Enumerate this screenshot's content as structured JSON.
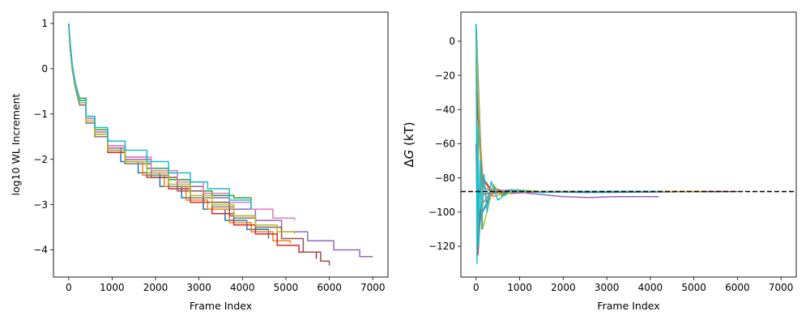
{
  "chart_data": [
    {
      "type": "line",
      "title": "",
      "xlabel": "Frame Index",
      "ylabel": "log10 WL Increment",
      "xlim": [
        -350,
        7350
      ],
      "ylim": [
        -4.6,
        1.25
      ],
      "xticks": [
        0,
        1000,
        2000,
        3000,
        4000,
        5000,
        6000,
        7000
      ],
      "yticks": [
        1,
        0,
        -1,
        -2,
        -3,
        -4
      ],
      "xtick_labels": [
        "0",
        "1000",
        "2000",
        "3000",
        "4000",
        "5000",
        "6000",
        "7000"
      ],
      "ytick_labels": [
        "1",
        "0",
        "−1",
        "−2",
        "−3",
        "−4"
      ],
      "grid": false,
      "series": [
        {
          "color": "#1f77b4",
          "x": [
            0,
            30,
            80,
            150,
            250,
            400,
            600,
            900,
            1200,
            1600,
            2100,
            2600,
            3100,
            3600,
            4100,
            4600
          ],
          "values": [
            1,
            0.6,
            0.1,
            -0.3,
            -0.7,
            -1.1,
            -1.4,
            -1.75,
            -2.05,
            -2.3,
            -2.6,
            -2.85,
            -3.1,
            -3.35,
            -3.55,
            -3.75
          ]
        },
        {
          "color": "#ff7f0e",
          "x": [
            0,
            30,
            80,
            150,
            250,
            400,
            600,
            900,
            1300,
            1700,
            2200,
            2700,
            3200,
            3700,
            4200,
            4700,
            5100
          ],
          "values": [
            1,
            0.55,
            0.05,
            -0.35,
            -0.75,
            -1.15,
            -1.45,
            -1.8,
            -2.05,
            -2.35,
            -2.6,
            -2.9,
            -3.1,
            -3.4,
            -3.6,
            -3.8,
            -3.85
          ]
        },
        {
          "color": "#2ca02c",
          "x": [
            0,
            30,
            80,
            150,
            250,
            400,
            600,
            900,
            1300,
            1800,
            2300,
            2800,
            3300,
            3800,
            4200
          ],
          "values": [
            1,
            0.6,
            0.1,
            -0.3,
            -0.65,
            -1.05,
            -1.35,
            -1.7,
            -1.95,
            -2.2,
            -2.45,
            -2.7,
            -2.8,
            -2.85,
            -2.9
          ]
        },
        {
          "color": "#d62728",
          "x": [
            0,
            30,
            80,
            150,
            250,
            400,
            600,
            900,
            1300,
            1800,
            2300,
            2800,
            3300,
            3800,
            4300,
            4800,
            5300,
            5700
          ],
          "values": [
            1,
            0.5,
            0,
            -0.4,
            -0.8,
            -1.2,
            -1.5,
            -1.85,
            -2.1,
            -2.4,
            -2.65,
            -2.95,
            -3.2,
            -3.45,
            -3.65,
            -3.9,
            -4.05,
            -4.2
          ]
        },
        {
          "color": "#9467bd",
          "x": [
            0,
            30,
            80,
            150,
            250,
            400,
            600,
            900,
            1300,
            1900,
            2500,
            3100,
            3700,
            4300,
            4900,
            5500,
            6100,
            6700,
            7000
          ],
          "values": [
            1,
            0.6,
            0.1,
            -0.3,
            -0.7,
            -1.1,
            -1.4,
            -1.75,
            -2.0,
            -2.3,
            -2.6,
            -2.85,
            -3.1,
            -3.35,
            -3.6,
            -3.8,
            -4.0,
            -4.15,
            -4.15
          ]
        },
        {
          "color": "#8c564b",
          "x": [
            0,
            30,
            80,
            150,
            250,
            400,
            600,
            900,
            1300,
            1900,
            2500,
            3100,
            3700,
            4300,
            4900,
            5400,
            5800,
            6000
          ],
          "values": [
            1,
            0.55,
            0.05,
            -0.35,
            -0.75,
            -1.15,
            -1.45,
            -1.8,
            -2.1,
            -2.4,
            -2.7,
            -2.95,
            -3.25,
            -3.5,
            -3.75,
            -4.05,
            -4.25,
            -4.35
          ]
        },
        {
          "color": "#e377c2",
          "x": [
            0,
            30,
            80,
            150,
            250,
            400,
            600,
            900,
            1300,
            1900,
            2500,
            3100,
            3700,
            4200,
            4700,
            5200
          ],
          "values": [
            1,
            0.6,
            0.1,
            -0.3,
            -0.7,
            -1.1,
            -1.4,
            -1.7,
            -1.95,
            -2.25,
            -2.5,
            -2.75,
            -2.95,
            -3.1,
            -3.3,
            -3.35
          ]
        },
        {
          "color": "#7f7f7f",
          "x": [
            0,
            30,
            80,
            150,
            250,
            400,
            600,
            900,
            1300,
            1800,
            2300,
            2800,
            3300,
            3800,
            4300,
            4800
          ],
          "values": [
            1,
            0.5,
            0,
            -0.4,
            -0.8,
            -1.2,
            -1.5,
            -1.8,
            -2.1,
            -2.35,
            -2.6,
            -2.85,
            -3.05,
            -3.3,
            -3.5,
            -3.65
          ]
        },
        {
          "color": "#bcbd22",
          "x": [
            0,
            30,
            80,
            150,
            250,
            400,
            600,
            900,
            1300,
            1800,
            2300,
            2800,
            3300,
            3800,
            4300,
            4800,
            5200
          ],
          "values": [
            1,
            0.55,
            0.05,
            -0.35,
            -0.75,
            -1.15,
            -1.45,
            -1.8,
            -2.05,
            -2.3,
            -2.55,
            -2.8,
            -3.0,
            -3.25,
            -3.45,
            -3.6,
            -3.65
          ]
        },
        {
          "color": "#17becf",
          "x": [
            0,
            30,
            80,
            150,
            250,
            400,
            600,
            900,
            1300,
            1800,
            2300,
            2800,
            3200,
            3700,
            4200
          ],
          "values": [
            1,
            0.6,
            0.1,
            -0.3,
            -0.7,
            -1.05,
            -1.3,
            -1.6,
            -1.8,
            -2.05,
            -2.3,
            -2.5,
            -2.65,
            -2.9,
            -3.1
          ]
        }
      ]
    },
    {
      "type": "line",
      "title": "",
      "xlabel": "Frame Index",
      "ylabel": "ΔG (kT)",
      "xlim": [
        -350,
        7350
      ],
      "ylim": [
        -138,
        17
      ],
      "xticks": [
        0,
        1000,
        2000,
        3000,
        4000,
        5000,
        6000,
        7000
      ],
      "yticks": [
        0,
        -20,
        -40,
        -60,
        -80,
        -100,
        -120
      ],
      "xtick_labels": [
        "0",
        "1000",
        "2000",
        "3000",
        "4000",
        "5000",
        "6000",
        "7000"
      ],
      "ytick_labels": [
        "0",
        "−20",
        "−40",
        "−60",
        "−80",
        "−100",
        "−120"
      ],
      "grid": false,
      "reference_line": {
        "y": -88,
        "style": "dashed",
        "color": "#000000"
      },
      "series": [
        {
          "color": "#1f77b4",
          "x": [
            0,
            150,
            400,
            800,
            1500,
            2500,
            4600
          ],
          "values": [
            10,
            -95,
            -86,
            -89,
            -88,
            -88.5,
            -88.2
          ]
        },
        {
          "color": "#ff7f0e",
          "x": [
            0,
            150,
            400,
            800,
            1500,
            2500,
            5100
          ],
          "values": [
            -20,
            -80,
            -91,
            -87,
            -88,
            -88,
            -88
          ]
        },
        {
          "color": "#2ca02c",
          "x": [
            0,
            150,
            400,
            600,
            900,
            1500,
            2500,
            4200
          ],
          "values": [
            5,
            -100,
            -85,
            -90,
            -87,
            -88,
            -88,
            -88
          ]
        },
        {
          "color": "#d62728",
          "x": [
            0,
            40,
            150,
            400,
            800,
            1500,
            2500,
            5700
          ],
          "values": [
            -60,
            -125,
            -80,
            -89,
            -87.5,
            -88,
            -88,
            -88
          ]
        },
        {
          "color": "#9467bd",
          "x": [
            0,
            150,
            400,
            800,
            1200,
            1600,
            2000,
            2600,
            3200,
            4200
          ],
          "values": [
            -10,
            -100,
            -88,
            -87,
            -89,
            -90,
            -91,
            -91.5,
            -91,
            -91
          ]
        },
        {
          "color": "#8c564b",
          "x": [
            0,
            150,
            400,
            800,
            1500,
            2500,
            6000
          ],
          "values": [
            -30,
            -90,
            -88,
            -89,
            -88,
            -88,
            -88
          ]
        },
        {
          "color": "#e377c2",
          "x": [
            0,
            150,
            400,
            800,
            1500,
            2500,
            5200
          ],
          "values": [
            0,
            -95,
            -87,
            -88.5,
            -88,
            -88,
            -88
          ]
        },
        {
          "color": "#7f7f7f",
          "x": [
            0,
            150,
            400,
            800,
            1500,
            2500,
            4800
          ],
          "values": [
            -15,
            -85,
            -89,
            -87.5,
            -88,
            -88,
            -88
          ]
        },
        {
          "color": "#bcbd22",
          "x": [
            0,
            150,
            400,
            600,
            900,
            1500,
            2500,
            5200
          ],
          "values": [
            5,
            -110,
            -84,
            -91,
            -87,
            -88,
            -88,
            -88
          ]
        },
        {
          "color": "#17becf",
          "x": [
            0,
            20,
            40,
            60,
            90,
            130,
            180,
            250,
            350,
            500,
            800,
            1500,
            2500,
            4200
          ],
          "values": [
            10,
            -130,
            -50,
            -120,
            -70,
            -110,
            -78,
            -100,
            -82,
            -93,
            -87,
            -88.5,
            -88,
            -88
          ]
        }
      ]
    }
  ]
}
